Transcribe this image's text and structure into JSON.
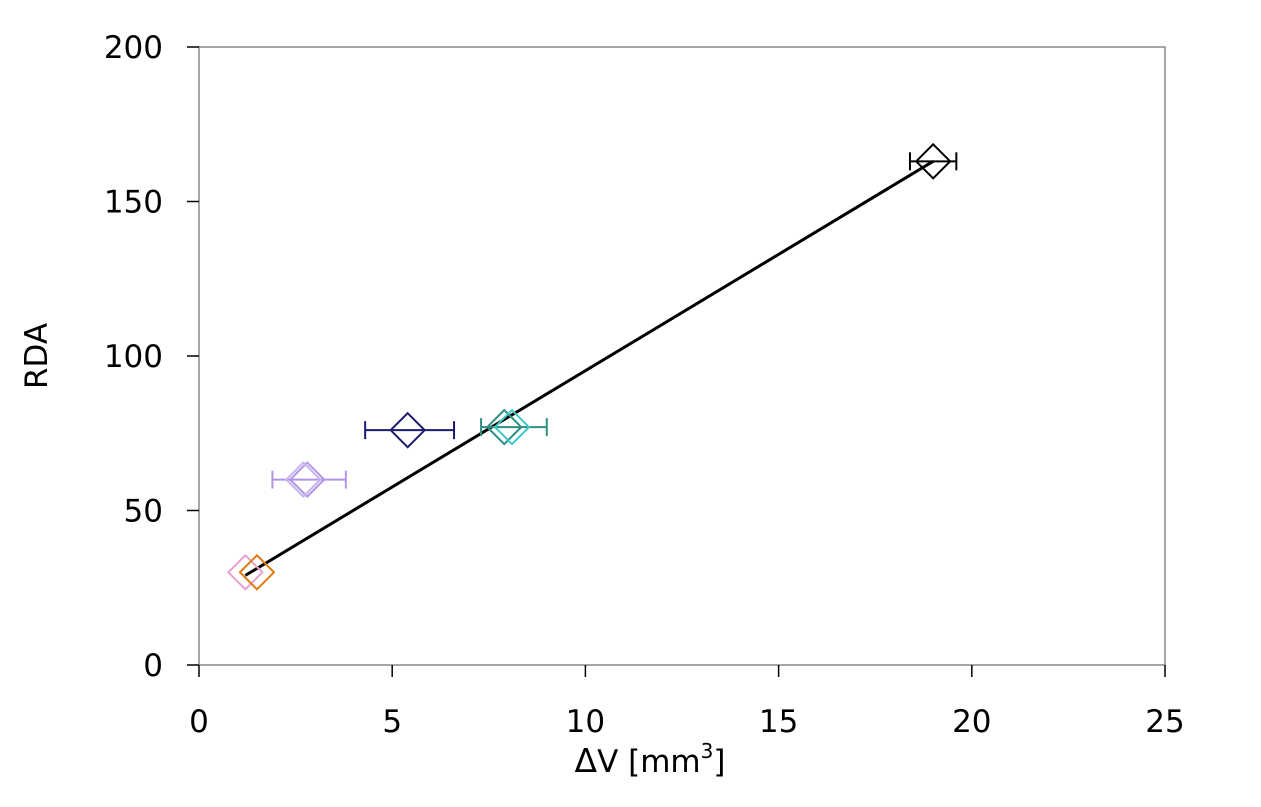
{
  "chart_data": {
    "type": "scatter",
    "title": "",
    "xlabel": {
      "prefix": "Δ",
      "main": "V [mm",
      "superscript": "3",
      "suffix": "]"
    },
    "ylabel": "RDA",
    "xlim": [
      0,
      25
    ],
    "ylim": [
      0,
      200
    ],
    "x_ticks": [
      "0",
      "5",
      "10",
      "15",
      "20",
      "25"
    ],
    "y_ticks": [
      "0",
      "50",
      "100",
      "150",
      "200"
    ],
    "grid": false,
    "legend": "none",
    "marker": "diamond-open",
    "points": [
      {
        "x": 1.2,
        "y": 30,
        "x_err": null,
        "color": "#e8a0d0"
      },
      {
        "x": 1.5,
        "y": 30,
        "x_err": null,
        "color": "#e07a10"
      },
      {
        "x": 2.8,
        "y": 60,
        "x_err": [
          1.9,
          3.8
        ],
        "color": "#b095e6"
      },
      {
        "x": 2.7,
        "y": 60,
        "x_err": null,
        "color": "#c8b4f0"
      },
      {
        "x": 5.4,
        "y": 76,
        "x_err": [
          4.3,
          6.6
        ],
        "color": "#1c1c6e"
      },
      {
        "x": 7.9,
        "y": 77,
        "x_err": [
          7.3,
          9.0
        ],
        "color": "#2f9080"
      },
      {
        "x": 8.1,
        "y": 77,
        "x_err": null,
        "color": "#40c8c8"
      },
      {
        "x": 19.0,
        "y": 163,
        "x_err": [
          18.4,
          19.6
        ],
        "color": "#000000"
      }
    ],
    "fit_line": {
      "x": [
        1.2,
        19.0
      ],
      "y": [
        29,
        163
      ],
      "color": "#000000"
    }
  }
}
